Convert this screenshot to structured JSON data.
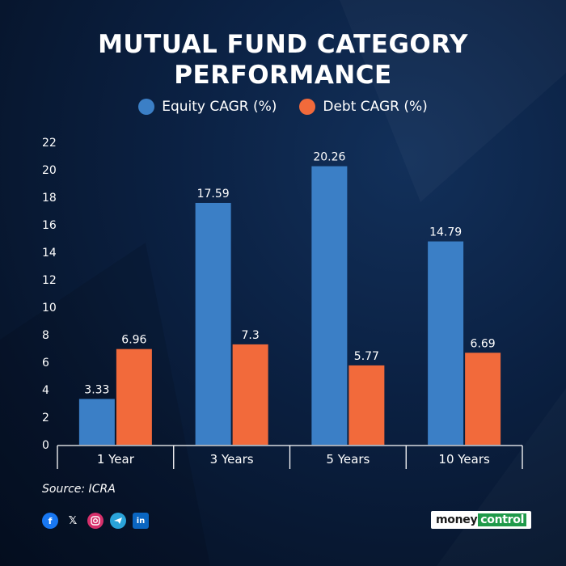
{
  "title_line1": "MUTUAL FUND CATEGORY",
  "title_line2": "PERFORMANCE",
  "source": "Source: ICRA",
  "social_icons": [
    "facebook-icon",
    "x-icon",
    "instagram-icon",
    "telegram-icon",
    "linkedin-icon"
  ],
  "brand": {
    "part1": "money",
    "part2": "control"
  },
  "colors": {
    "equity": "#3b7fc6",
    "debt": "#f26a3b",
    "instagram": "#d6306b",
    "facebook": "#1877f2",
    "telegram": "#2aa3d9",
    "linkedin": "#0a66c2"
  },
  "chart_data": {
    "type": "bar",
    "categories": [
      "1 Year",
      "3 Years",
      "5 Years",
      "10 Years"
    ],
    "series": [
      {
        "name": "Equity CAGR (%)",
        "values": [
          3.33,
          17.59,
          20.26,
          14.79
        ]
      },
      {
        "name": "Debt CAGR (%)",
        "values": [
          6.96,
          7.3,
          5.77,
          6.69
        ]
      }
    ],
    "data_labels": [
      [
        "3.33",
        "17.59",
        "20.26",
        "14.79"
      ],
      [
        "6.96",
        "7.3",
        "5.77",
        "6.69"
      ]
    ],
    "ylim": [
      0,
      22
    ],
    "yticks": [
      0,
      2,
      4,
      6,
      8,
      10,
      12,
      14,
      16,
      18,
      20,
      22
    ],
    "grid": false,
    "legend_position": "top-center"
  }
}
